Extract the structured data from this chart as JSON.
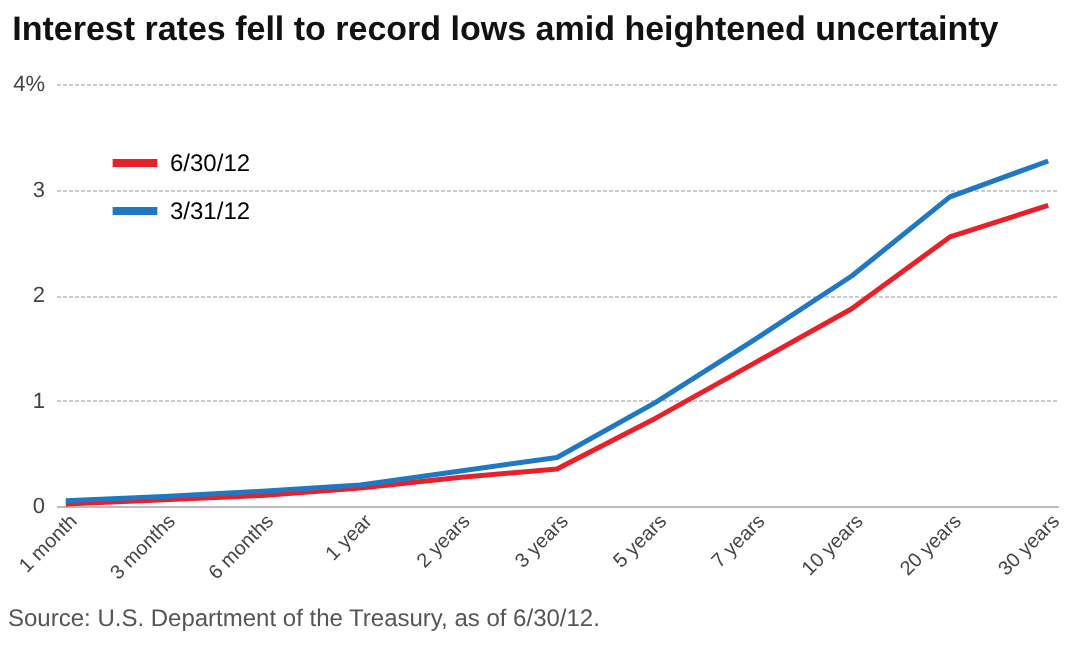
{
  "chart_data": {
    "type": "line",
    "title": "Interest rates fell to record lows amid heightened uncertainty",
    "annotations": [
      "Source: U.S. Department of the Treasury, as of 6/30/12."
    ],
    "categories": [
      "1 month",
      "3 months",
      "6 months",
      "1 year",
      "2 years",
      "3 years",
      "5 years",
      "7 years",
      "10 years",
      "20 years",
      "30 years"
    ],
    "series": [
      {
        "name": "6/30/12",
        "color": "#e8202a",
        "values": [
          0.02,
          0.06,
          0.1,
          0.17,
          0.27,
          0.35,
          0.83,
          1.35,
          1.87,
          2.55,
          2.85
        ]
      },
      {
        "name": "3/31/12",
        "color": "#1f78c1",
        "values": [
          0.05,
          0.09,
          0.14,
          0.2,
          0.33,
          0.46,
          0.98,
          1.57,
          2.18,
          2.93,
          3.27
        ]
      }
    ],
    "ylim": [
      0,
      4
    ],
    "yticks": [
      0,
      1,
      2,
      3,
      {
        "value": 4,
        "label": "4%"
      }
    ],
    "grid": "y",
    "legend": "top left",
    "marker": "none",
    "line_style": "solid"
  }
}
